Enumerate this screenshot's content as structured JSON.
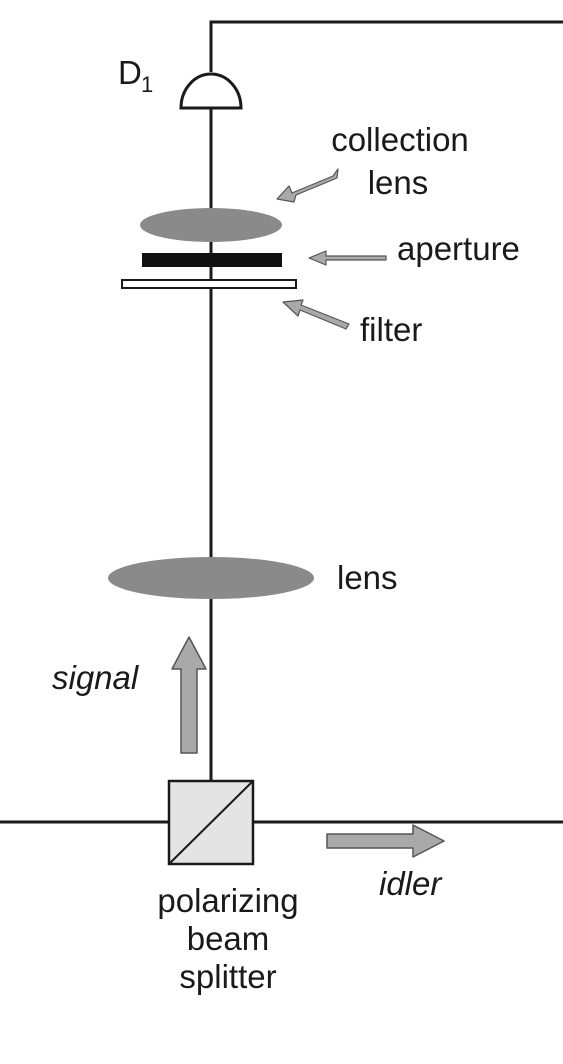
{
  "labels": {
    "detector_main": "D",
    "detector_sub": "1",
    "collection_lens_line1": "collection",
    "collection_lens_line2": "lens",
    "aperture": "aperture",
    "filter": "filter",
    "lens": "lens",
    "signal": "signal",
    "idler": "idler",
    "pbs_line1": "polarizing",
    "pbs_line2": "beam",
    "pbs_line3": "splitter"
  },
  "colors": {
    "beam_line": "#1a1a1a",
    "lens_fill": "#8a8a8a",
    "aperture_fill": "#111111",
    "arrow_fill": "#a9a9a9",
    "arrow_stroke": "#555555",
    "splitter_fill": "#e4e4e4"
  }
}
